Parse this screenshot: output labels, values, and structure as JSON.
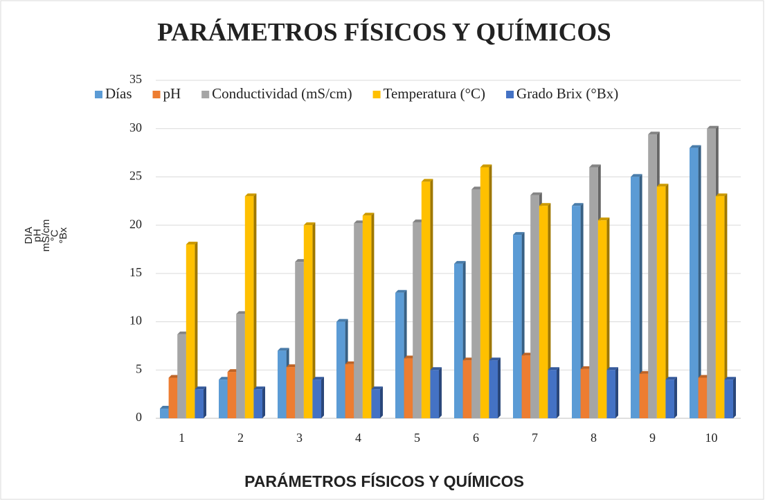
{
  "chart_data": {
    "type": "bar",
    "title": "PARÁMETROS FÍSICOS Y QUÍMICOS",
    "x_label": "PARÁMETROS FÍSICOS Y QUÍMICOS",
    "y_label": [
      "DIA",
      "pH",
      "mS/cm",
      "°C",
      "°Bx"
    ],
    "categories": [
      "1",
      "2",
      "3",
      "4",
      "5",
      "6",
      "7",
      "8",
      "9",
      "10"
    ],
    "series": [
      {
        "name": "Días",
        "color": "#5b9bd5",
        "values": [
          1,
          4,
          7,
          10,
          13,
          16,
          19,
          22,
          25,
          28
        ]
      },
      {
        "name": "pH",
        "color": "#ed7d31",
        "values": [
          4.2,
          4.8,
          5.3,
          5.6,
          6.2,
          6.0,
          6.5,
          5.1,
          4.6,
          4.2
        ]
      },
      {
        "name": "Conductividad (mS/cm)",
        "color": "#a5a5a5",
        "values": [
          8.7,
          10.8,
          16.2,
          20.2,
          20.3,
          23.7,
          23.1,
          26.0,
          29.4,
          30.0
        ]
      },
      {
        "name": "Temperatura (°C)",
        "color": "#ffc000",
        "values": [
          18,
          23,
          20,
          21,
          24.5,
          26,
          22,
          20.5,
          24,
          23
        ]
      },
      {
        "name": "Grado Brix (°Bx)",
        "color": "#4472c4",
        "values": [
          3,
          3,
          4,
          3,
          5,
          6,
          5,
          5,
          4,
          4
        ]
      }
    ],
    "ylim": [
      0,
      35
    ],
    "yticks": [
      0,
      5,
      10,
      15,
      20,
      25,
      30,
      35
    ],
    "grid": true,
    "legend": "top"
  }
}
